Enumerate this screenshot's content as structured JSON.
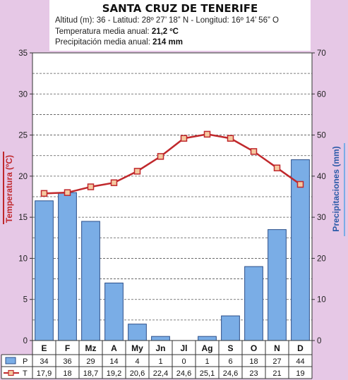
{
  "header": {
    "title": "SANTA CRUZ DE TENERIFE",
    "line1": "Altitud (m): 36 - Latitud: 28º 27’ 18” N - Longitud: 16º 14’ 56” O",
    "line2_label": "Temperatura media anual: ",
    "line2_value": "21,2 ºC",
    "line3_label": "Precipitación media anual: ",
    "line3_value": "214 mm"
  },
  "chart_data": {
    "type": "bar+line",
    "categories": [
      "E",
      "F",
      "Mz",
      "A",
      "My",
      "Jn",
      "Jl",
      "Ag",
      "S",
      "O",
      "N",
      "D"
    ],
    "series": [
      {
        "name": "P",
        "type": "bar",
        "axis": "right",
        "values": [
          34,
          36,
          29,
          14,
          4,
          1,
          0,
          1,
          6,
          18,
          27,
          44
        ],
        "labels": [
          "34",
          "36",
          "29",
          "14",
          "4",
          "1",
          "0",
          "1",
          "6",
          "18",
          "27",
          "44"
        ],
        "color": "#7aade6"
      },
      {
        "name": "T",
        "type": "line",
        "axis": "left",
        "values": [
          17.9,
          18,
          18.7,
          19.2,
          20.6,
          22.4,
          24.6,
          25.1,
          24.6,
          23,
          21,
          19
        ],
        "labels": [
          "17,9",
          "18",
          "18,7",
          "19,2",
          "20,6",
          "22,4",
          "24,6",
          "25,1",
          "24,6",
          "23",
          "21",
          "19"
        ],
        "color": "#c0282c"
      }
    ],
    "ylabel_left": "Temperatura (ºC)",
    "ylabel_right": "Precipitaciones (mm)",
    "ylim_left": [
      0,
      35
    ],
    "ylim_right": [
      0,
      70
    ],
    "yticks_left": [
      0,
      5,
      10,
      15,
      20,
      25,
      30,
      35
    ],
    "yticks_right": [
      0,
      10,
      20,
      30,
      40,
      50,
      60,
      70
    ],
    "grid": "dashed horizontal"
  }
}
